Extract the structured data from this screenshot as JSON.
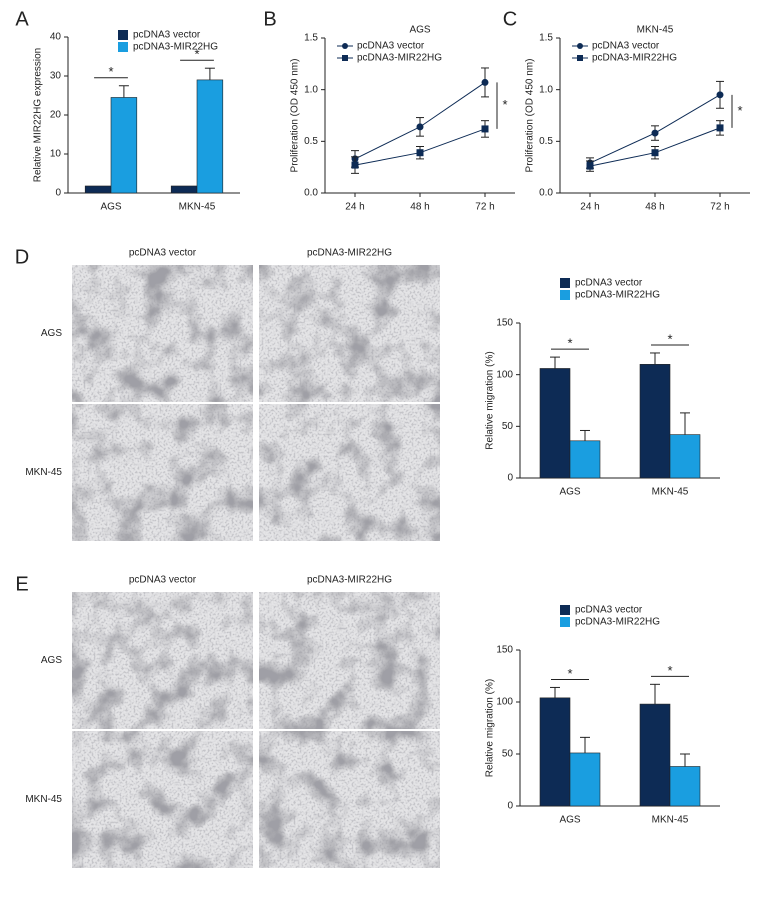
{
  "chart_data": [
    {
      "type": "bar",
      "panel": "A",
      "ylabel": "Relative MIR22HG expression",
      "categories": [
        "AGS",
        "MKN-45"
      ],
      "series": [
        {
          "name": "pcDNA3 vector",
          "color": "#0d2b55",
          "values": [
            1.8,
            1.8
          ],
          "errors": [
            0,
            0
          ]
        },
        {
          "name": "pcDNA3-MIR22HG",
          "color": "#1a9ee0",
          "values": [
            24.5,
            29
          ],
          "errors": [
            3,
            3
          ]
        }
      ],
      "ylim": [
        0,
        40
      ],
      "yticks": [
        0,
        10,
        20,
        30,
        40
      ],
      "annotations": [
        "*",
        "*"
      ]
    },
    {
      "type": "line",
      "panel": "B",
      "title": "AGS",
      "ylabel": "Proliferation (OD 450 nm)",
      "categories": [
        "24 h",
        "48 h",
        "72 h"
      ],
      "series": [
        {
          "name": "pcDNA3 vector",
          "color": "#0d2b55",
          "values": [
            0.33,
            0.64,
            1.07
          ],
          "errors": [
            0.08,
            0.09,
            0.14
          ]
        },
        {
          "name": "pcDNA3-MIR22HG",
          "color": "#0d2b55",
          "values": [
            0.27,
            0.39,
            0.62
          ],
          "errors": [
            0.08,
            0.06,
            0.08
          ]
        }
      ],
      "ylim": [
        0,
        1.5
      ],
      "yticks": [
        {
          "value": 0,
          "label": "0.0"
        },
        0.5,
        {
          "value": 1,
          "label": "1.0"
        },
        1.5
      ],
      "annotations": [
        "*"
      ]
    },
    {
      "type": "line",
      "panel": "C",
      "title": "MKN-45",
      "ylabel": "Proliferation (OD 450 nm)",
      "categories": [
        "24 h",
        "48 h",
        "72 h"
      ],
      "series": [
        {
          "name": "pcDNA3 vector",
          "color": "#0d2b55",
          "values": [
            0.29,
            0.58,
            0.95
          ],
          "errors": [
            0.05,
            0.07,
            0.13
          ]
        },
        {
          "name": "pcDNA3-MIR22HG",
          "color": "#0d2b55",
          "values": [
            0.26,
            0.39,
            0.63
          ],
          "errors": [
            0.05,
            0.06,
            0.07
          ]
        }
      ],
      "ylim": [
        0,
        1.5
      ],
      "yticks": [
        {
          "value": 0,
          "label": "0.0"
        },
        0.5,
        {
          "value": 1,
          "label": "1.0"
        },
        1.5
      ],
      "annotations": [
        "*"
      ]
    },
    {
      "type": "bar",
      "panel": "D",
      "ylabel": "Relative migration (%)",
      "image_columns": [
        "pcDNA3 vector",
        "pcDNA3-MIR22HG"
      ],
      "image_rows": [
        "AGS",
        "MKN-45"
      ],
      "categories": [
        "AGS",
        "MKN-45"
      ],
      "series": [
        {
          "name": "pcDNA3 vector",
          "color": "#0d2b55",
          "values": [
            106,
            110
          ],
          "errors": [
            11,
            11
          ]
        },
        {
          "name": "pcDNA3-MIR22HG",
          "color": "#1a9ee0",
          "values": [
            36,
            42
          ],
          "errors": [
            10,
            21
          ]
        }
      ],
      "ylim": [
        0,
        150
      ],
      "yticks": [
        0,
        50,
        100,
        150
      ],
      "annotations": [
        "*",
        "*"
      ]
    },
    {
      "type": "bar",
      "panel": "E",
      "ylabel": "Relative migration (%)",
      "image_columns": [
        "pcDNA3 vector",
        "pcDNA3-MIR22HG"
      ],
      "image_rows": [
        "AGS",
        "MKN-45"
      ],
      "categories": [
        "AGS",
        "MKN-45"
      ],
      "series": [
        {
          "name": "pcDNA3 vector",
          "color": "#0d2b55",
          "values": [
            104,
            98
          ],
          "errors": [
            10,
            19
          ]
        },
        {
          "name": "pcDNA3-MIR22HG",
          "color": "#1a9ee0",
          "values": [
            51,
            38
          ],
          "errors": [
            15,
            12
          ]
        }
      ],
      "ylim": [
        0,
        150
      ],
      "yticks": [
        0,
        50,
        100,
        150
      ],
      "annotations": [
        "*",
        "*"
      ]
    }
  ]
}
